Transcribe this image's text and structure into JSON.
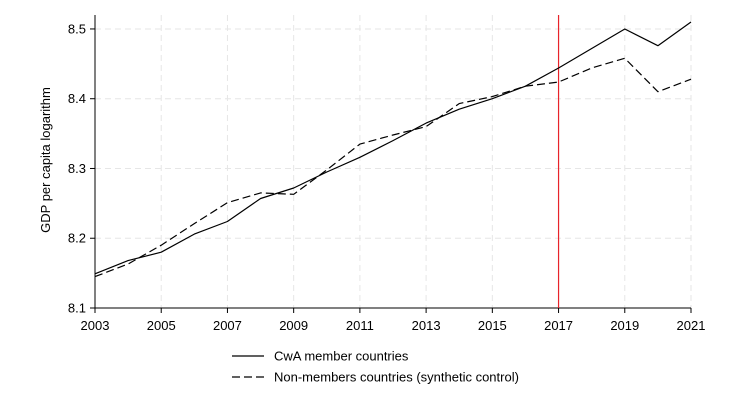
{
  "chart_data": {
    "type": "line",
    "ylabel": "GDP per capita logarithm",
    "xlabel": "",
    "xlim": [
      2003,
      2021
    ],
    "ylim": [
      8.1,
      8.52
    ],
    "x_ticks": [
      2003,
      2005,
      2007,
      2009,
      2011,
      2013,
      2015,
      2017,
      2019,
      2021
    ],
    "y_ticks": [
      "8.1",
      "8.2",
      "8.3",
      "8.4",
      "8.5"
    ],
    "grid": true,
    "legend_position": "bottom",
    "x": [
      2003,
      2004,
      2005,
      2006,
      2007,
      2008,
      2009,
      2010,
      2011,
      2012,
      2013,
      2014,
      2015,
      2016,
      2017,
      2018,
      2019,
      2020,
      2021
    ],
    "series": [
      {
        "name": "CwA member countries",
        "style": "solid",
        "color": "#000000",
        "values": [
          8.149,
          8.168,
          8.18,
          8.206,
          8.224,
          8.257,
          8.272,
          8.295,
          8.316,
          8.34,
          8.365,
          8.385,
          8.4,
          8.418,
          8.444,
          8.472,
          8.5,
          8.476,
          8.51
        ]
      },
      {
        "name": "Non-members countries (synthetic control)",
        "style": "dashed",
        "color": "#000000",
        "values": [
          8.145,
          8.163,
          8.19,
          8.221,
          8.251,
          8.265,
          8.263,
          8.298,
          8.335,
          8.348,
          8.36,
          8.393,
          8.403,
          8.418,
          8.424,
          8.444,
          8.458,
          8.41,
          8.428
        ]
      }
    ],
    "reference_line": {
      "x": 2017,
      "color": "#e8232a"
    }
  }
}
